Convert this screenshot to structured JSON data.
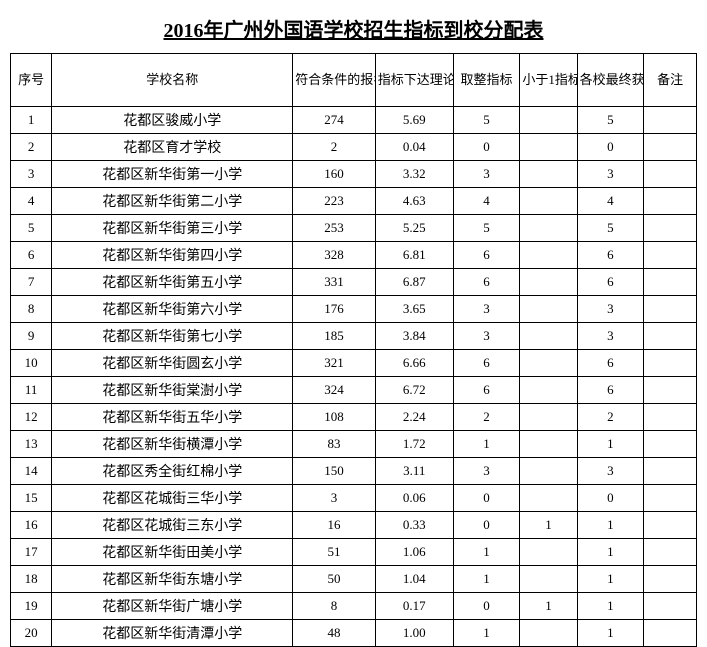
{
  "title": "2016年广州外国语学校招生指标到校分配表",
  "headers": {
    "index": "序号",
    "name": "学校名称",
    "count": "符合条件的报名总人数",
    "theory": "指标下达理论数",
    "round": "取整指标",
    "lt1": "小于1指标",
    "final": "各校最终获得指标数",
    "remark": "备注"
  },
  "rows": [
    {
      "i": "1",
      "name": "花都区骏威小学",
      "count": "274",
      "theory": "5.69",
      "round": "5",
      "lt1": "",
      "final": "5",
      "remark": ""
    },
    {
      "i": "2",
      "name": "花都区育才学校",
      "count": "2",
      "theory": "0.04",
      "round": "0",
      "lt1": "",
      "final": "0",
      "remark": ""
    },
    {
      "i": "3",
      "name": "花都区新华街第一小学",
      "count": "160",
      "theory": "3.32",
      "round": "3",
      "lt1": "",
      "final": "3",
      "remark": ""
    },
    {
      "i": "4",
      "name": "花都区新华街第二小学",
      "count": "223",
      "theory": "4.63",
      "round": "4",
      "lt1": "",
      "final": "4",
      "remark": ""
    },
    {
      "i": "5",
      "name": "花都区新华街第三小学",
      "count": "253",
      "theory": "5.25",
      "round": "5",
      "lt1": "",
      "final": "5",
      "remark": ""
    },
    {
      "i": "6",
      "name": "花都区新华街第四小学",
      "count": "328",
      "theory": "6.81",
      "round": "6",
      "lt1": "",
      "final": "6",
      "remark": ""
    },
    {
      "i": "7",
      "name": "花都区新华街第五小学",
      "count": "331",
      "theory": "6.87",
      "round": "6",
      "lt1": "",
      "final": "6",
      "remark": ""
    },
    {
      "i": "8",
      "name": "花都区新华街第六小学",
      "count": "176",
      "theory": "3.65",
      "round": "3",
      "lt1": "",
      "final": "3",
      "remark": ""
    },
    {
      "i": "9",
      "name": "花都区新华街第七小学",
      "count": "185",
      "theory": "3.84",
      "round": "3",
      "lt1": "",
      "final": "3",
      "remark": ""
    },
    {
      "i": "10",
      "name": "花都区新华街圆玄小学",
      "count": "321",
      "theory": "6.66",
      "round": "6",
      "lt1": "",
      "final": "6",
      "remark": ""
    },
    {
      "i": "11",
      "name": "花都区新华街棠澍小学",
      "count": "324",
      "theory": "6.72",
      "round": "6",
      "lt1": "",
      "final": "6",
      "remark": ""
    },
    {
      "i": "12",
      "name": "花都区新华街五华小学",
      "count": "108",
      "theory": "2.24",
      "round": "2",
      "lt1": "",
      "final": "2",
      "remark": ""
    },
    {
      "i": "13",
      "name": "花都区新华街横潭小学",
      "count": "83",
      "theory": "1.72",
      "round": "1",
      "lt1": "",
      "final": "1",
      "remark": ""
    },
    {
      "i": "14",
      "name": "花都区秀全街红棉小学",
      "count": "150",
      "theory": "3.11",
      "round": "3",
      "lt1": "",
      "final": "3",
      "remark": ""
    },
    {
      "i": "15",
      "name": "花都区花城街三华小学",
      "count": "3",
      "theory": "0.06",
      "round": "0",
      "lt1": "",
      "final": "0",
      "remark": ""
    },
    {
      "i": "16",
      "name": "花都区花城街三东小学",
      "count": "16",
      "theory": "0.33",
      "round": "0",
      "lt1": "1",
      "final": "1",
      "remark": ""
    },
    {
      "i": "17",
      "name": "花都区新华街田美小学",
      "count": "51",
      "theory": "1.06",
      "round": "1",
      "lt1": "",
      "final": "1",
      "remark": ""
    },
    {
      "i": "18",
      "name": "花都区新华街东塘小学",
      "count": "50",
      "theory": "1.04",
      "round": "1",
      "lt1": "",
      "final": "1",
      "remark": ""
    },
    {
      "i": "19",
      "name": "花都区新华街广塘小学",
      "count": "8",
      "theory": "0.17",
      "round": "0",
      "lt1": "1",
      "final": "1",
      "remark": ""
    },
    {
      "i": "20",
      "name": "花都区新华街清潭小学",
      "count": "48",
      "theory": "1.00",
      "round": "1",
      "lt1": "",
      "final": "1",
      "remark": ""
    }
  ]
}
